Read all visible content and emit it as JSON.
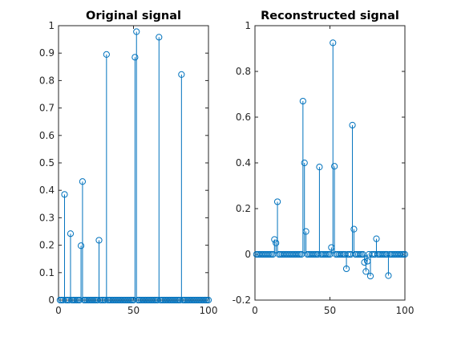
{
  "figure": {
    "background": "#ffffff",
    "axis_color": "#262626",
    "series_color": "#0072bd"
  },
  "chart_data": [
    {
      "type": "stem",
      "title": "Original signal",
      "xlabel": "",
      "ylabel": "",
      "xlim": [
        0,
        100
      ],
      "ylim": [
        0,
        1
      ],
      "xticks": [
        0,
        50,
        100
      ],
      "yticks": [
        0,
        0.1,
        0.2,
        0.3,
        0.4,
        0.5,
        0.6,
        0.7,
        0.8,
        0.9,
        1
      ],
      "ytick_labels": [
        "0",
        "0.1",
        "0.2",
        "0.3",
        "0.4",
        "0.5",
        "0.6",
        "0.7",
        "0.8",
        "0.9",
        "1"
      ],
      "grid": false,
      "marker": "circle",
      "n": 100,
      "x_start": 1,
      "nonzero": [
        {
          "x": 4,
          "y": 0.385
        },
        {
          "x": 8,
          "y": 0.242
        },
        {
          "x": 15,
          "y": 0.198
        },
        {
          "x": 16,
          "y": 0.432
        },
        {
          "x": 27,
          "y": 0.218
        },
        {
          "x": 32,
          "y": 0.895
        },
        {
          "x": 51,
          "y": 0.885
        },
        {
          "x": 52,
          "y": 0.978
        },
        {
          "x": 67,
          "y": 0.958
        },
        {
          "x": 82,
          "y": 0.822
        }
      ]
    },
    {
      "type": "stem",
      "title": "Reconstructed signal",
      "xlabel": "",
      "ylabel": "",
      "xlim": [
        0,
        100
      ],
      "ylim": [
        -0.2,
        1
      ],
      "xticks": [
        0,
        50,
        100
      ],
      "yticks": [
        -0.2,
        0,
        0.2,
        0.4,
        0.6,
        0.8,
        1
      ],
      "ytick_labels": [
        "-0.2",
        "0",
        "0.2",
        "0.4",
        "0.6",
        "0.8",
        "1"
      ],
      "grid": false,
      "marker": "circle",
      "n": 100,
      "x_start": 1,
      "nonzero": [
        {
          "x": 13,
          "y": 0.065
        },
        {
          "x": 14,
          "y": 0.05
        },
        {
          "x": 15,
          "y": 0.23
        },
        {
          "x": 32,
          "y": 0.67
        },
        {
          "x": 33,
          "y": 0.4
        },
        {
          "x": 34,
          "y": 0.1
        },
        {
          "x": 43,
          "y": 0.382
        },
        {
          "x": 51,
          "y": 0.03
        },
        {
          "x": 52,
          "y": 0.925
        },
        {
          "x": 53,
          "y": 0.385
        },
        {
          "x": 61,
          "y": -0.063
        },
        {
          "x": 65,
          "y": 0.565
        },
        {
          "x": 66,
          "y": 0.11
        },
        {
          "x": 73,
          "y": -0.035
        },
        {
          "x": 74,
          "y": -0.075
        },
        {
          "x": 75,
          "y": -0.03
        },
        {
          "x": 77,
          "y": -0.095
        },
        {
          "x": 81,
          "y": 0.068
        },
        {
          "x": 89,
          "y": -0.093
        }
      ]
    }
  ]
}
